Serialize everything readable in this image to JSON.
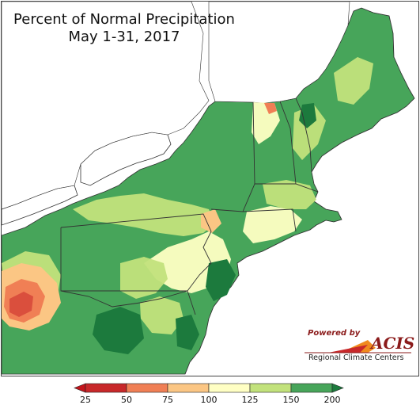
{
  "map": {
    "title_line1": "Percent of Normal Precipitation",
    "title_line2": "May 1-31, 2017",
    "palette": {
      "lt25": "#c4151c",
      "25_50": "#c8282a",
      "50_75": "#f07f55",
      "75_100": "#fbc684",
      "100_125": "#ffffc4",
      "125_150": "#c2e27c",
      "150_200": "#47a55a",
      "gt200": "#1c7a3d"
    }
  },
  "legend": {
    "ticks": [
      "25",
      "50",
      "75",
      "100",
      "125",
      "150",
      "200"
    ],
    "colors": [
      "#c8282a",
      "#f07f55",
      "#fbc684",
      "#ffffc4",
      "#c2e27c",
      "#47a55a"
    ],
    "low_color": "#c4151c",
    "high_color": "#1c7a3d"
  },
  "logo": {
    "powered_by": "Powered by",
    "acis": "ACIS",
    "rcc": "Regional Climate Centers"
  }
}
